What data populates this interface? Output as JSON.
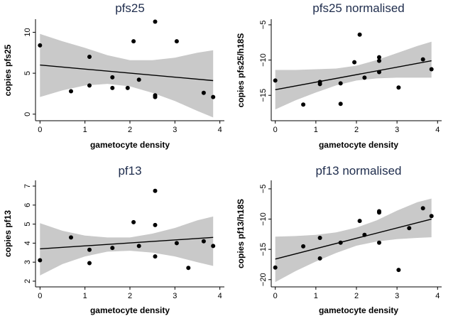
{
  "chart_data": [
    {
      "type": "scatter",
      "title": "pfs25",
      "xlabel": "gametocyte density",
      "ylabel": "copies pfs25",
      "xlim": [
        -0.1,
        4.1
      ],
      "ylim": [
        -0.8,
        11.6
      ],
      "xticks": [
        0,
        1,
        2,
        3,
        4
      ],
      "yticks": [
        0,
        5,
        10
      ],
      "points": [
        [
          0,
          8.4
        ],
        [
          0.69,
          2.8
        ],
        [
          1.1,
          3.5
        ],
        [
          1.1,
          7.0
        ],
        [
          1.61,
          3.2
        ],
        [
          1.61,
          4.5
        ],
        [
          1.95,
          3.2
        ],
        [
          2.08,
          8.9
        ],
        [
          2.2,
          4.2
        ],
        [
          2.56,
          2.1
        ],
        [
          2.56,
          2.3
        ],
        [
          2.56,
          11.3
        ],
        [
          3.04,
          8.9
        ],
        [
          3.64,
          2.6
        ],
        [
          3.85,
          2.1
        ]
      ],
      "fit": {
        "x": [
          0,
          3.85
        ],
        "y": [
          6.0,
          4.1
        ]
      },
      "ci_band": {
        "x": [
          0,
          0.5,
          1.0,
          1.5,
          2.0,
          2.5,
          3.0,
          3.5,
          3.85
        ],
        "lower": [
          2.1,
          2.9,
          3.5,
          3.7,
          3.4,
          2.6,
          1.6,
          0.4,
          -0.4
        ],
        "upper": [
          9.8,
          8.9,
          8.1,
          7.2,
          6.6,
          6.6,
          6.9,
          7.5,
          7.8
        ]
      }
    },
    {
      "type": "scatter",
      "title": "pfs25 normalised",
      "xlabel": "gametocyte density",
      "ylabel": "copies pfs25/h18S",
      "xlim": [
        -0.1,
        4.1
      ],
      "ylim": [
        -18.6,
        -4.2
      ],
      "xticks": [
        0,
        1,
        2,
        3,
        4
      ],
      "yticks": [
        -5,
        -10,
        -15
      ],
      "points": [
        [
          0,
          -12.9
        ],
        [
          0.69,
          -16.3
        ],
        [
          1.1,
          -13.1
        ],
        [
          1.1,
          -13.4
        ],
        [
          1.61,
          -13.3
        ],
        [
          1.61,
          -16.2
        ],
        [
          1.95,
          -10.3
        ],
        [
          2.08,
          -6.4
        ],
        [
          2.2,
          -12.5
        ],
        [
          2.56,
          -9.6
        ],
        [
          2.56,
          -10.1
        ],
        [
          2.56,
          -11.7
        ],
        [
          3.04,
          -13.9
        ],
        [
          3.64,
          -9.9
        ],
        [
          3.85,
          -11.3
        ]
      ],
      "fit": {
        "x": [
          0,
          3.85
        ],
        "y": [
          -14.2,
          -10.1
        ]
      },
      "ci_band": {
        "x": [
          0,
          0.5,
          1.0,
          1.5,
          2.0,
          2.5,
          3.0,
          3.5,
          3.85
        ],
        "lower": [
          -17.0,
          -15.7,
          -14.6,
          -13.6,
          -12.9,
          -12.6,
          -12.5,
          -12.5,
          -12.5
        ],
        "upper": [
          -11.4,
          -11.4,
          -11.3,
          -11.2,
          -10.8,
          -10.0,
          -9.0,
          -8.0,
          -7.4
        ]
      }
    },
    {
      "type": "scatter",
      "title": "pf13",
      "xlabel": "gametocyte density",
      "ylabel": "copies pf13",
      "xlim": [
        -0.1,
        4.1
      ],
      "ylim": [
        1.7,
        7.3
      ],
      "xticks": [
        0,
        1,
        2,
        3,
        4
      ],
      "yticks": [
        2,
        3,
        4,
        5,
        6,
        7
      ],
      "points": [
        [
          0,
          3.1
        ],
        [
          0.69,
          4.3
        ],
        [
          1.1,
          2.95
        ],
        [
          1.1,
          3.65
        ],
        [
          1.61,
          3.75
        ],
        [
          2.08,
          5.1
        ],
        [
          2.2,
          3.85
        ],
        [
          2.56,
          3.3
        ],
        [
          2.56,
          4.95
        ],
        [
          2.56,
          6.75
        ],
        [
          3.04,
          4.0
        ],
        [
          3.3,
          2.7
        ],
        [
          3.64,
          4.1
        ],
        [
          3.85,
          3.85
        ]
      ],
      "fit": {
        "x": [
          0,
          3.85
        ],
        "y": [
          3.7,
          4.3
        ]
      },
      "ci_band": {
        "x": [
          0,
          0.5,
          1.0,
          1.5,
          2.0,
          2.5,
          3.0,
          3.5,
          3.85
        ],
        "lower": [
          2.3,
          2.9,
          3.3,
          3.55,
          3.6,
          3.5,
          3.3,
          3.0,
          2.8
        ],
        "upper": [
          5.05,
          4.65,
          4.4,
          4.3,
          4.3,
          4.5,
          4.8,
          5.2,
          5.4
        ]
      }
    },
    {
      "type": "scatter",
      "title": "pf13 normalised",
      "xlabel": "gametocyte density",
      "ylabel": "copies pf13/h18S",
      "xlim": [
        -0.1,
        4.1
      ],
      "ylim": [
        -21.2,
        -3.6
      ],
      "xticks": [
        0,
        1,
        2,
        3,
        4
      ],
      "yticks": [
        -5,
        -10,
        -15,
        -20
      ],
      "points": [
        [
          0,
          -18.0
        ],
        [
          0.69,
          -14.5
        ],
        [
          1.1,
          -13.1
        ],
        [
          1.1,
          -16.5
        ],
        [
          1.61,
          -13.9
        ],
        [
          2.08,
          -10.3
        ],
        [
          2.2,
          -12.6
        ],
        [
          2.56,
          -8.7
        ],
        [
          2.56,
          -8.9
        ],
        [
          2.56,
          -13.9
        ],
        [
          3.04,
          -18.4
        ],
        [
          3.3,
          -11.5
        ],
        [
          3.64,
          -8.2
        ],
        [
          3.85,
          -9.5
        ]
      ],
      "fit": {
        "x": [
          0,
          3.85
        ],
        "y": [
          -16.6,
          -10.0
        ]
      },
      "ci_band": {
        "x": [
          0,
          0.5,
          1.0,
          1.5,
          2.0,
          2.5,
          3.0,
          3.5,
          3.85
        ],
        "lower": [
          -20.4,
          -18.6,
          -17.0,
          -15.6,
          -14.4,
          -13.7,
          -13.3,
          -13.1,
          -13.0
        ],
        "upper": [
          -12.9,
          -12.8,
          -12.6,
          -12.2,
          -11.4,
          -10.2,
          -8.6,
          -7.2,
          -6.6
        ]
      }
    }
  ]
}
